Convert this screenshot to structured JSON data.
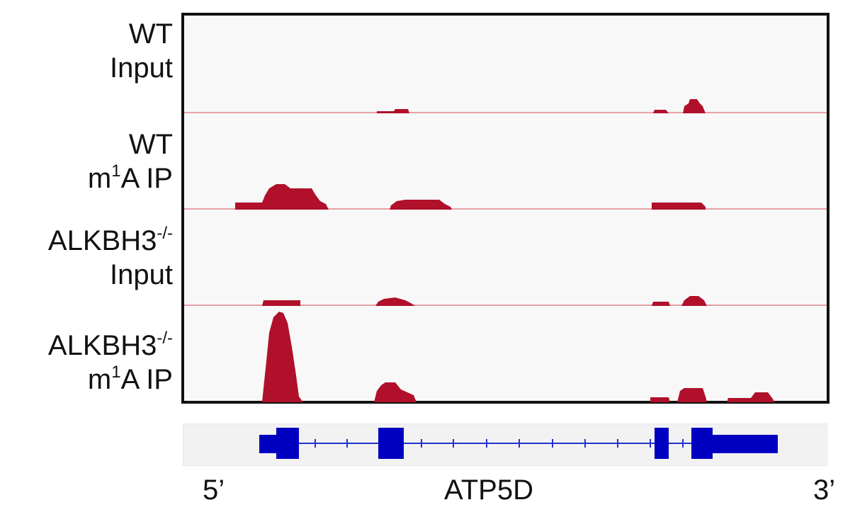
{
  "tracks": [
    {
      "label_line1": "WT",
      "label_line1_sup": "",
      "label_line2_pre": "",
      "label_line2_sup": "",
      "label_line2": "Input"
    },
    {
      "label_line1": "WT",
      "label_line1_sup": "",
      "label_line2_pre": "m",
      "label_line2_sup": "1",
      "label_line2": "A IP"
    },
    {
      "label_line1": "ALKBH3",
      "label_line1_sup": "-/-",
      "label_line2_pre": "",
      "label_line2_sup": "",
      "label_line2": "Input"
    },
    {
      "label_line1": "ALKBH3",
      "label_line1_sup": "-/-",
      "label_line2_pre": "m",
      "label_line2_sup": "1",
      "label_line2": "A IP"
    }
  ],
  "gene": {
    "name": "ATP5D",
    "five_prime": "5’",
    "three_prime": "3’"
  },
  "colors": {
    "signal": "#b0102a",
    "baseline": "#e8a0a8",
    "gene_model": "#0000c0",
    "frame": "#111111"
  }
}
